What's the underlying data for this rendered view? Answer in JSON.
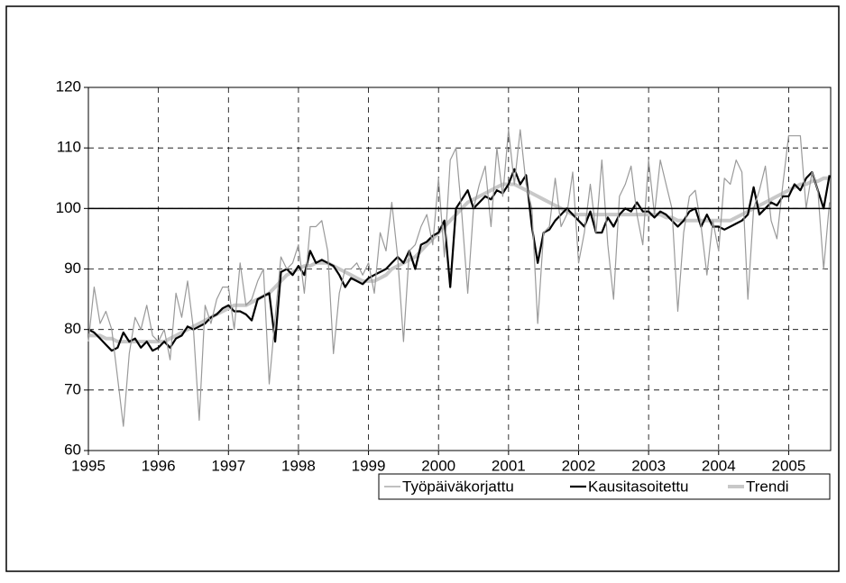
{
  "chart_data": {
    "type": "line",
    "x": [
      1995,
      1995.083,
      1995.167,
      1995.25,
      1995.333,
      1995.417,
      1995.5,
      1995.583,
      1995.667,
      1995.75,
      1995.833,
      1995.917,
      1996,
      1996.083,
      1996.167,
      1996.25,
      1996.333,
      1996.417,
      1996.5,
      1996.583,
      1996.667,
      1996.75,
      1996.833,
      1996.917,
      1997,
      1997.083,
      1997.167,
      1997.25,
      1997.333,
      1997.417,
      1997.5,
      1997.583,
      1997.667,
      1997.75,
      1997.833,
      1997.917,
      1998,
      1998.083,
      1998.167,
      1998.25,
      1998.333,
      1998.417,
      1998.5,
      1998.583,
      1998.667,
      1998.75,
      1998.833,
      1998.917,
      1999,
      1999.083,
      1999.167,
      1999.25,
      1999.333,
      1999.417,
      1999.5,
      1999.583,
      1999.667,
      1999.75,
      1999.833,
      1999.917,
      2000,
      2000.083,
      2000.167,
      2000.25,
      2000.333,
      2000.417,
      2000.5,
      2000.583,
      2000.667,
      2000.75,
      2000.833,
      2000.917,
      2001,
      2001.083,
      2001.167,
      2001.25,
      2001.333,
      2001.417,
      2001.5,
      2001.583,
      2001.667,
      2001.75,
      2001.833,
      2001.917,
      2002,
      2002.083,
      2002.167,
      2002.25,
      2002.333,
      2002.417,
      2002.5,
      2002.583,
      2002.667,
      2002.75,
      2002.833,
      2002.917,
      2003,
      2003.083,
      2003.167,
      2003.25,
      2003.333,
      2003.417,
      2003.5,
      2003.583,
      2003.667,
      2003.75,
      2003.833,
      2003.917,
      2004,
      2004.083,
      2004.167,
      2004.25,
      2004.333,
      2004.417,
      2004.5,
      2004.583,
      2004.667,
      2004.75,
      2004.833,
      2004.917,
      2005,
      2005.083,
      2005.167,
      2005.25,
      2005.333,
      2005.417,
      2005.5,
      2005.583
    ],
    "series": [
      {
        "name": "Työpäiväkorjattu",
        "color": "#9a9a9a",
        "width": 1.2,
        "values": [
          78,
          87,
          81,
          83,
          80,
          72,
          64,
          76,
          82,
          80,
          84,
          79,
          78,
          80,
          75,
          86,
          82,
          88,
          80,
          65,
          84,
          81,
          85,
          87,
          87,
          80,
          91,
          84,
          85,
          88,
          90,
          71,
          82,
          92,
          90,
          91,
          94,
          86,
          97,
          97,
          98,
          93,
          76,
          86,
          90,
          90,
          91,
          89,
          91,
          86,
          96,
          93,
          101,
          92,
          78,
          93,
          94,
          97,
          99,
          94,
          105,
          92,
          108,
          110,
          99,
          86,
          100,
          104,
          107,
          97,
          110,
          102,
          113,
          104,
          113,
          104,
          100,
          81,
          96,
          97,
          105,
          97,
          99,
          106,
          91,
          96,
          104,
          96,
          108,
          94,
          85,
          102,
          104,
          107,
          99,
          94,
          108,
          99,
          108,
          104,
          100,
          83,
          96,
          102,
          103,
          97,
          89,
          98,
          93,
          105,
          104,
          108,
          106,
          85,
          100,
          103,
          107,
          98,
          95,
          104,
          112,
          112,
          112,
          100,
          106,
          103,
          90,
          101
        ]
      },
      {
        "name": "Kausitasoitettu",
        "color": "#000000",
        "width": 2.2,
        "values": [
          80,
          79.5,
          78.5,
          77.5,
          76.5,
          77,
          79.5,
          78,
          78.5,
          77,
          78,
          76.5,
          77,
          78,
          77,
          78.5,
          79,
          80.5,
          80,
          80.5,
          81,
          82,
          82.5,
          83.5,
          84,
          83,
          83,
          82.5,
          81.5,
          85,
          85.5,
          86,
          78,
          89.5,
          90,
          89,
          90.5,
          89,
          93,
          91,
          91.5,
          91,
          90.5,
          89,
          87,
          88.5,
          88,
          87.5,
          88.5,
          89,
          89.5,
          90,
          91,
          92,
          91,
          93,
          90,
          94,
          94.5,
          95.5,
          96,
          98,
          87,
          100,
          101.5,
          103,
          100,
          101,
          102,
          101.5,
          103,
          102.5,
          104,
          106.5,
          104,
          105.5,
          97,
          91,
          96,
          96.5,
          98,
          99,
          100,
          99,
          98,
          97,
          99.5,
          96,
          96,
          98.5,
          97,
          99,
          100,
          99.5,
          101,
          99.5,
          99.5,
          98.5,
          99.5,
          99,
          98,
          97,
          98,
          99.5,
          100,
          97,
          99,
          97,
          97,
          96.5,
          97,
          97.5,
          98,
          99,
          103.5,
          99,
          100,
          101,
          100.5,
          102,
          102,
          104,
          103,
          105,
          106,
          103,
          100,
          105.5
        ]
      },
      {
        "name": "Trendi",
        "color": "#c8c8c8",
        "width": 4,
        "values": [
          79,
          79,
          79,
          78.5,
          78.5,
          78,
          78,
          78,
          78,
          78,
          78,
          78,
          78,
          78,
          78.5,
          79,
          79.5,
          80,
          80.5,
          81,
          81.5,
          82,
          82.5,
          83,
          83.5,
          84,
          84,
          84,
          84.5,
          85,
          85.5,
          86,
          87,
          88,
          89,
          89.5,
          90,
          90.5,
          90.5,
          91,
          91,
          91,
          90.5,
          90,
          89.5,
          89,
          88.5,
          88,
          88,
          88,
          88.5,
          89,
          90,
          90.5,
          91,
          91.5,
          92,
          93,
          94,
          95,
          96,
          97,
          98,
          99,
          100,
          101,
          101.5,
          102,
          102.5,
          103,
          103.5,
          104,
          104,
          104,
          103.5,
          103,
          102.5,
          102,
          101.5,
          101,
          100.5,
          100,
          99.5,
          99,
          99,
          99,
          99,
          99,
          99,
          99,
          99,
          99,
          99,
          99,
          99,
          99,
          99,
          99,
          99,
          98.5,
          98.5,
          98,
          98,
          98,
          98,
          98,
          98,
          98,
          98,
          98,
          98,
          98.5,
          99,
          99.5,
          100,
          100.5,
          101,
          101.5,
          102,
          102.5,
          103,
          103.5,
          104,
          104,
          104.5,
          104.5,
          105,
          105
        ]
      }
    ],
    "xlim": [
      1995,
      2005.6
    ],
    "xticks": [
      1995,
      1996,
      1997,
      1998,
      1999,
      2000,
      2001,
      2002,
      2003,
      2004,
      2005
    ],
    "ylim": [
      60,
      120
    ],
    "yticks": [
      60,
      70,
      80,
      90,
      100,
      110,
      120
    ],
    "reference_line": 100,
    "grid": true,
    "legend": "bottom-right"
  }
}
